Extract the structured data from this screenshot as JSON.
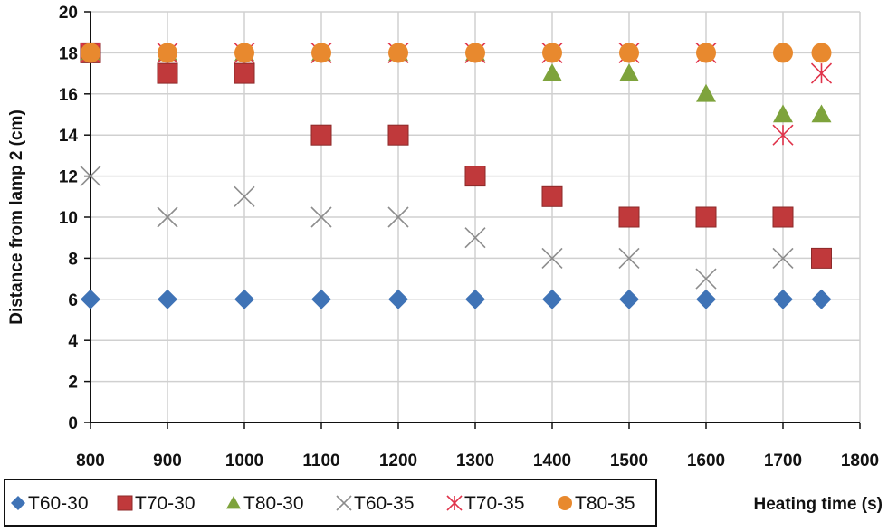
{
  "chart_data": {
    "type": "scatter",
    "xlabel": "Heating time (s)",
    "ylabel": "Distance from lamp 2 (cm)",
    "xlim": [
      800,
      1800
    ],
    "ylim": [
      0,
      20
    ],
    "xticks": [
      800,
      900,
      1000,
      1100,
      1200,
      1300,
      1400,
      1500,
      1600,
      1700,
      1800
    ],
    "yticks": [
      0,
      2,
      4,
      6,
      8,
      10,
      12,
      14,
      16,
      18,
      20
    ],
    "grid": true,
    "legend_placement": "bottom",
    "x": [
      800,
      900,
      1000,
      1100,
      1200,
      1300,
      1400,
      1500,
      1600,
      1700,
      1750
    ],
    "series": [
      {
        "name": "T60-30",
        "marker": "diamond",
        "color": "#3f73b6",
        "values": [
          6,
          6,
          6,
          6,
          6,
          6,
          6,
          6,
          6,
          6,
          6
        ]
      },
      {
        "name": "T70-30",
        "marker": "square",
        "color": "#c0393b",
        "values": [
          18,
          17,
          17,
          14,
          14,
          12,
          11,
          10,
          10,
          10,
          8
        ]
      },
      {
        "name": "T80-30",
        "marker": "triangle",
        "color": "#7ea33c",
        "values": [
          18,
          18,
          18,
          18,
          18,
          18,
          17,
          17,
          16,
          15,
          15
        ]
      },
      {
        "name": "T60-35",
        "marker": "x",
        "color": "#8c8c8c",
        "values": [
          12,
          10,
          11,
          10,
          10,
          9,
          8,
          8,
          7,
          8,
          null
        ]
      },
      {
        "name": "T70-35",
        "marker": "star",
        "color": "#e0334a",
        "values": [
          18,
          18,
          18,
          18,
          18,
          18,
          18,
          18,
          18,
          14,
          17
        ]
      },
      {
        "name": "T80-35",
        "marker": "circle",
        "color": "#e8892e",
        "values": [
          18,
          18,
          18,
          18,
          18,
          18,
          18,
          18,
          18,
          18,
          18
        ]
      }
    ]
  }
}
